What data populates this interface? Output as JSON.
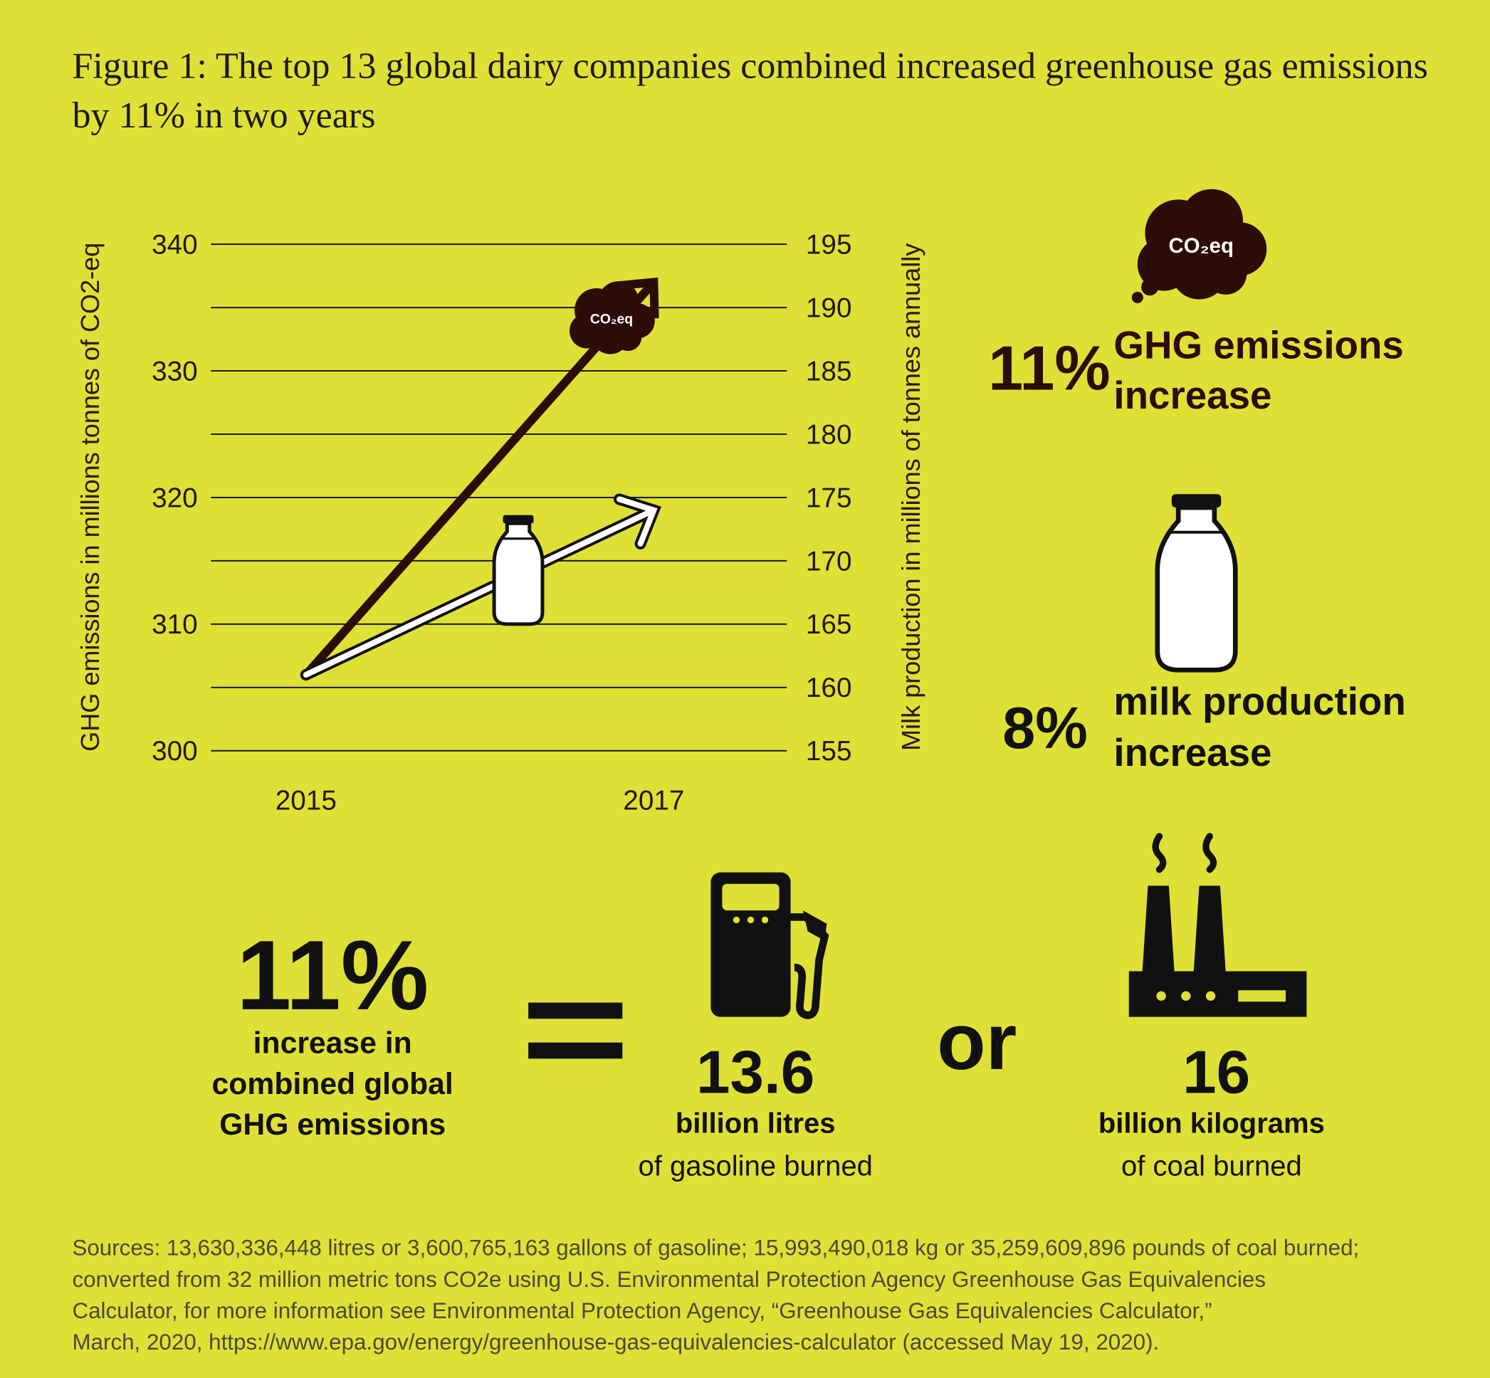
{
  "chart_data": {
    "type": "line",
    "title": "Figure 1: The top 13 global dairy companies combined increased greenhouse gas emissions by 11% in two years",
    "categories": [
      "2015",
      "2017"
    ],
    "series": [
      {
        "color": "#2d0b06",
        "values": [
          306,
          337
        ],
        "axis": "y"
      },
      {
        "color": "#ffffff",
        "values": [
          161,
          174
        ],
        "axis": "y2"
      }
    ],
    "ylabel": "GHG emissions in millions tonnes of CO2-eq",
    "y2label": "Milk production in millions of tonnes annually",
    "ylim": [
      300,
      340
    ],
    "yticks": [
      300,
      310,
      320,
      330,
      340
    ],
    "y2lim": [
      155,
      195
    ],
    "y2ticks": [
      155,
      160,
      165,
      170,
      175,
      180,
      185,
      190,
      195
    ],
    "grid": true
  },
  "co2_label": "CO₂eq",
  "stats": [
    {
      "value": "11%",
      "lines": [
        "GHG emissions",
        "increase"
      ]
    },
    {
      "value": "8%",
      "lines": [
        "milk production",
        "increase"
      ]
    }
  ],
  "equivalence": {
    "value": "11%",
    "lines": [
      "increase in",
      "combined global",
      "GHG emissions"
    ],
    "gasoline": {
      "value": "13.6",
      "unit": "billion litres",
      "note": "of gasoline burned"
    },
    "or": "or",
    "coal": {
      "value": "16",
      "unit": "billion kilograms",
      "note": "of coal burned"
    }
  },
  "sources": [
    "Sources: 13,630,336,448 litres or 3,600,765,163 gallons of gasoline; 15,993,490,018 kg or 35,259,609,896 pounds of coal burned;",
    "converted from 32 million metric tons CO2e using U.S. Environmental Protection Agency Greenhouse Gas Equivalencies",
    "Calculator, for more information see Environmental Protection Agency, “Greenhouse Gas Equivalencies Calculator,”",
    "March, 2020, https://www.epa.gov/energy/greenhouse-gas-equivalencies-calculator (accessed May 19, 2020)."
  ]
}
